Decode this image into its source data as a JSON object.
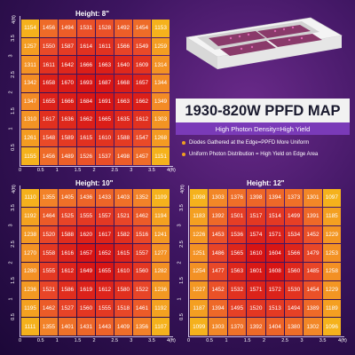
{
  "title": "1930-820W PPFD MAP",
  "subtitle": "High Photon Density=High Yield",
  "notes": [
    "Diodes Gathered at the Edge=PPFD More Uniform",
    "Uniform Photon Distribution = High Yield on Edge Area"
  ],
  "colors": {
    "low": "#f5b21c",
    "mid": "#f07030",
    "high": "#e02020",
    "peak": "#d81010"
  },
  "chart_data": [
    {
      "type": "heatmap",
      "title": "Height: 8\"",
      "x_ticks": [
        "0",
        "0.5",
        "1",
        "1.5",
        "2",
        "2.5",
        "3",
        "3.5",
        "4(ft)"
      ],
      "y_ticks": [
        "4(ft)",
        "3.5",
        "3",
        "2.5",
        "2",
        "1.5",
        "1",
        "0.5"
      ],
      "rows": [
        [
          1154,
          1456,
          1494,
          1531,
          1528,
          1492,
          1454,
          1153
        ],
        [
          1257,
          1550,
          1587,
          1614,
          1611,
          1566,
          1549,
          1259
        ],
        [
          1311,
          1611,
          1642,
          1666,
          1663,
          1640,
          1609,
          1314
        ],
        [
          1342,
          1658,
          1670,
          1693,
          1687,
          1668,
          1657,
          1344
        ],
        [
          1347,
          1655,
          1666,
          1684,
          1691,
          1663,
          1662,
          1349
        ],
        [
          1310,
          1617,
          1636,
          1662,
          1665,
          1635,
          1612,
          1303
        ],
        [
          1261,
          1548,
          1589,
          1615,
          1610,
          1588,
          1547,
          1268
        ],
        [
          1155,
          1456,
          1489,
          1526,
          1537,
          1498,
          1457,
          1151
        ]
      ]
    },
    {
      "type": "heatmap",
      "title": "Height: 10\"",
      "x_ticks": [
        "0",
        "0.5",
        "1",
        "1.5",
        "2",
        "2.5",
        "3",
        "3.5",
        "4(ft)"
      ],
      "y_ticks": [
        "4(ft)",
        "3.5",
        "3",
        "2.5",
        "2",
        "1.5",
        "1",
        "0.5"
      ],
      "rows": [
        [
          1110,
          1355,
          1405,
          1436,
          1433,
          1403,
          1352,
          1109
        ],
        [
          1192,
          1464,
          1525,
          1555,
          1557,
          1521,
          1462,
          1194
        ],
        [
          1238,
          1520,
          1588,
          1620,
          1617,
          1582,
          1516,
          1241
        ],
        [
          1270,
          1558,
          1616,
          1657,
          1652,
          1615,
          1557,
          1277
        ],
        [
          1280,
          1555,
          1612,
          1649,
          1655,
          1610,
          1560,
          1282
        ],
        [
          1236,
          1521,
          1586,
          1619,
          1612,
          1580,
          1522,
          1236
        ],
        [
          1195,
          1462,
          1527,
          1560,
          1555,
          1518,
          1461,
          1192
        ],
        [
          1111,
          1355,
          1401,
          1431,
          1443,
          1409,
          1356,
          1107
        ]
      ]
    },
    {
      "type": "heatmap",
      "title": "Height: 12\"",
      "x_ticks": [
        "0",
        "0.5",
        "1",
        "1.5",
        "2",
        "2.5",
        "3",
        "3.5",
        "4(ft)"
      ],
      "y_ticks": [
        "4(ft)",
        "3.5",
        "3",
        "2.5",
        "2",
        "1.5",
        "1",
        "0.5"
      ],
      "rows": [
        [
          1098,
          1303,
          1376,
          1398,
          1394,
          1373,
          1301,
          1097
        ],
        [
          1183,
          1392,
          1501,
          1517,
          1514,
          1499,
          1391,
          1185
        ],
        [
          1226,
          1453,
          1536,
          1574,
          1571,
          1534,
          1452,
          1229
        ],
        [
          1251,
          1486,
          1565,
          1610,
          1604,
          1566,
          1479,
          1253
        ],
        [
          1254,
          1477,
          1563,
          1601,
          1608,
          1560,
          1485,
          1258
        ],
        [
          1227,
          1452,
          1532,
          1571,
          1572,
          1530,
          1454,
          1229
        ],
        [
          1187,
          1394,
          1495,
          1520,
          1513,
          1494,
          1389,
          1189
        ],
        [
          1099,
          1303,
          1370,
          1392,
          1404,
          1380,
          1302,
          1096
        ]
      ]
    }
  ]
}
